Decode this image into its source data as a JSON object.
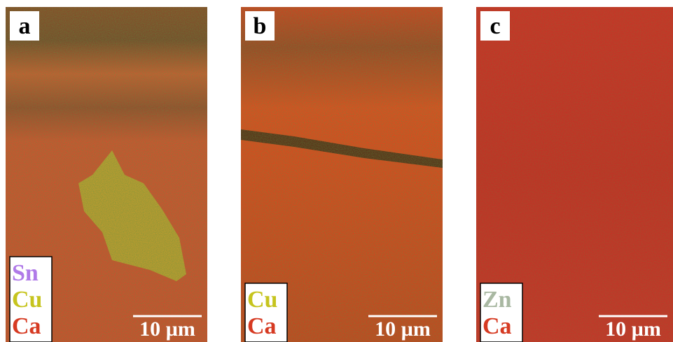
{
  "panels": [
    {
      "label": "a",
      "elements": [
        {
          "symbol": "Sn",
          "color": "#b07ae8"
        },
        {
          "symbol": "Cu",
          "color": "#c6c41e"
        },
        {
          "symbol": "Ca",
          "color": "#d63a22"
        }
      ],
      "scale_bar": "10 µm"
    },
    {
      "label": "b",
      "elements": [
        {
          "symbol": "Cu",
          "color": "#c6c41e"
        },
        {
          "symbol": "Ca",
          "color": "#d63a22"
        }
      ],
      "scale_bar": "10 µm"
    },
    {
      "label": "c",
      "elements": [
        {
          "symbol": "Zn",
          "color": "#a9b8a2"
        },
        {
          "symbol": "Ca",
          "color": "#d63a22"
        }
      ],
      "scale_bar": "10 µm"
    }
  ]
}
